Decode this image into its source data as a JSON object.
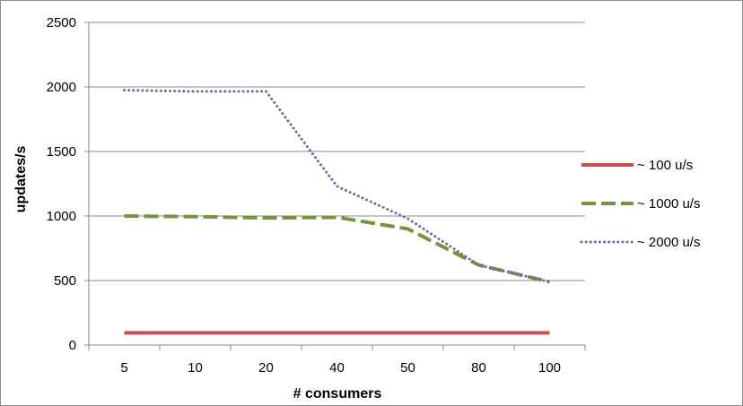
{
  "chart_data": {
    "type": "line",
    "xlabel": "# consumers",
    "ylabel": "updates/s",
    "categories": [
      "5",
      "10",
      "20",
      "40",
      "50",
      "80",
      "100"
    ],
    "ylim": [
      0,
      2500
    ],
    "yticks": [
      0,
      500,
      1000,
      1500,
      2000,
      2500
    ],
    "grid": "horizontal",
    "legend_position": "right",
    "series": [
      {
        "name": "~ 100 u/s",
        "values": [
          95,
          95,
          95,
          95,
          95,
          95,
          95
        ],
        "color": "#c0504d",
        "style": "solid"
      },
      {
        "name": "~ 1000 u/s",
        "values": [
          1000,
          995,
          985,
          990,
          900,
          620,
          490
        ],
        "color": "#77933c",
        "style": "dashed"
      },
      {
        "name": "~ 2000 u/s",
        "values": [
          1975,
          1965,
          1965,
          1230,
          980,
          620,
          490
        ],
        "color": "#8064a2",
        "style": "dotted"
      }
    ]
  }
}
